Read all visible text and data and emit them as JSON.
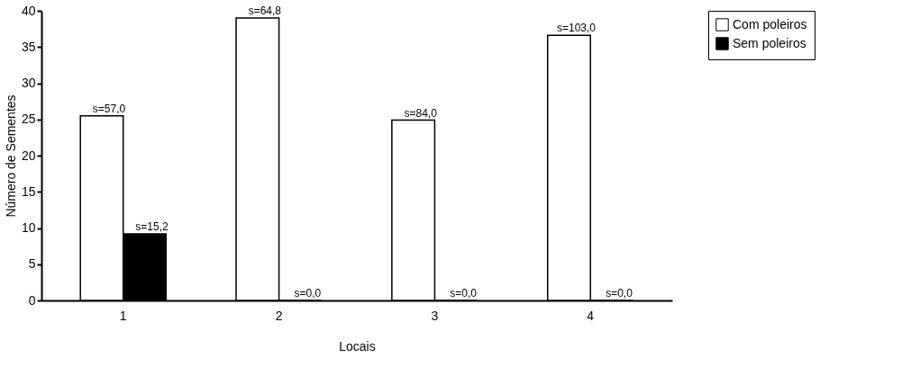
{
  "chart_data": {
    "type": "bar",
    "xlabel": "Locais",
    "ylabel": "Número de Sementes",
    "categories": [
      "1",
      "2",
      "3",
      "4"
    ],
    "series": [
      {
        "name": "Com poleiros",
        "color": "#ffffff",
        "values": [
          25.5,
          39.0,
          24.9,
          36.6
        ]
      },
      {
        "name": "Sem poleiros",
        "color": "#000000",
        "values": [
          9.2,
          0,
          0,
          0
        ]
      }
    ],
    "annotations": [
      {
        "text": "s=57,0",
        "x": "1",
        "y": 25.5
      },
      {
        "text": "s=15,2",
        "x": "1",
        "y": 9.2
      },
      {
        "text": "s=64,8",
        "x": "2",
        "y": 39.0
      },
      {
        "text": "s=0,0",
        "x": "2",
        "y": 0
      },
      {
        "text": "s=84,0",
        "x": "3",
        "y": 24.9
      },
      {
        "text": "s=0,0",
        "x": "3",
        "y": 0
      },
      {
        "text": "s=103,0",
        "x": "4",
        "y": 36.6
      },
      {
        "text": "s=0,0",
        "x": "4",
        "y": 0
      }
    ],
    "ylim": [
      0,
      40
    ],
    "yticks": [
      0,
      5,
      10,
      15,
      20,
      25,
      30,
      35,
      40
    ],
    "grid": false,
    "legend": "right"
  }
}
